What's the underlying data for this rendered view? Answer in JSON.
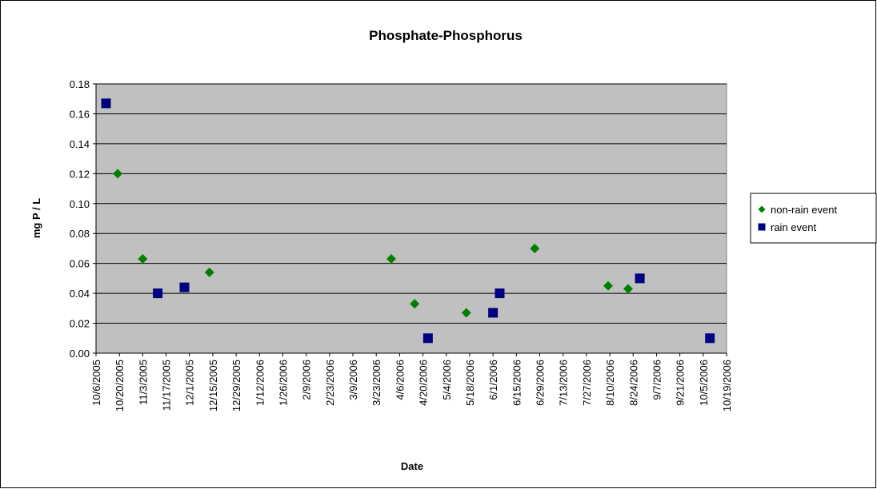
{
  "chart_data": {
    "type": "scatter",
    "title": "Phosphate-Phosphorus",
    "x_label": "Date",
    "y_label": "mg P / L",
    "xlim": [
      "10/6/2005",
      "10/19/2006"
    ],
    "xticks": [
      "10/6/2005",
      "10/20/2005",
      "11/3/2005",
      "11/17/2005",
      "12/1/2005",
      "12/15/2005",
      "12/29/2005",
      "1/12/2006",
      "1/26/2006",
      "2/9/2006",
      "2/23/2006",
      "3/9/2006",
      "3/23/2006",
      "4/6/2006",
      "4/20/2006",
      "5/4/2006",
      "5/18/2006",
      "6/1/2006",
      "6/15/2006",
      "6/29/2006",
      "7/13/2006",
      "7/27/2006",
      "8/10/2006",
      "8/24/2006",
      "9/7/2006",
      "9/21/2006",
      "10/5/2006",
      "10/19/2006"
    ],
    "ylim": [
      0,
      0.18
    ],
    "yticks": [
      {
        "value": 0,
        "label": "0.00"
      },
      0.02,
      0.04,
      0.06,
      0.08,
      {
        "value": 0.1,
        "label": "0.10"
      },
      0.12,
      0.14,
      0.16,
      0.18
    ],
    "grid": true,
    "legend": "right",
    "series": [
      {
        "name": "non-rain event",
        "color": "#008000",
        "marker": "diamond",
        "x": [
          "10/19/2005",
          "11/3/2005",
          "12/13/2005",
          "4/1/2006",
          "4/15/2006",
          "5/16/2006",
          "6/26/2006",
          "8/9/2006",
          "8/21/2006"
        ],
        "values": [
          0.12,
          0.063,
          0.054,
          0.063,
          0.033,
          0.027,
          0.07,
          0.045,
          0.043
        ]
      },
      {
        "name": "rain event",
        "color": "#000080",
        "marker": "square",
        "x": [
          "10/12/2005",
          "11/12/2005",
          "11/28/2005",
          "4/23/2006",
          "6/1/2006",
          "6/5/2006",
          "8/28/2006",
          "10/9/2006"
        ],
        "values": [
          0.167,
          0.04,
          0.044,
          0.01,
          0.027,
          0.04,
          0.05,
          0.01
        ]
      }
    ]
  }
}
